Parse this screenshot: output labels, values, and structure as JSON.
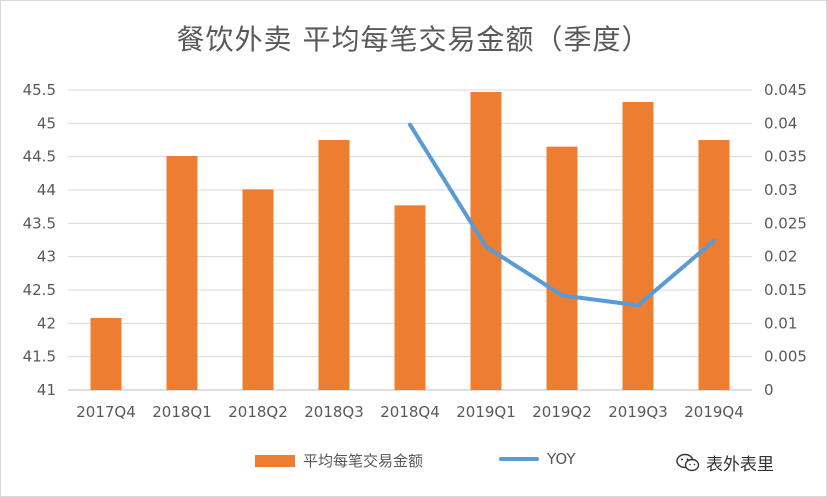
{
  "chart_data": {
    "type": "bar",
    "title": "餐饮外卖 平均每笔交易金额（季度）",
    "categories": [
      "2017Q4",
      "2018Q1",
      "2018Q2",
      "2018Q3",
      "2018Q4",
      "2019Q1",
      "2019Q2",
      "2019Q3",
      "2019Q4"
    ],
    "series": [
      {
        "name": "平均每笔交易金额",
        "type": "bar",
        "axis": "left",
        "color": "#ED7D31",
        "values": [
          42.08,
          44.51,
          44.01,
          44.75,
          43.77,
          45.47,
          44.65,
          45.32,
          44.75
        ]
      },
      {
        "name": "YOY",
        "type": "line",
        "axis": "right",
        "color": "#5B9BD5",
        "values": [
          null,
          null,
          null,
          null,
          0.0398,
          0.0215,
          0.0142,
          0.0127,
          0.0224
        ]
      }
    ],
    "ylim_left": [
      41,
      45.5
    ],
    "yticks_left": [
      "41",
      "41.5",
      "42",
      "42.5",
      "43",
      "43.5",
      "44",
      "44.5",
      "45",
      "45.5"
    ],
    "ylim_right": [
      0,
      0.045
    ],
    "yticks_right": [
      "0",
      "0.005",
      "0.01",
      "0.015",
      "0.02",
      "0.025",
      "0.03",
      "0.035",
      "0.04",
      "0.045"
    ],
    "grid": true,
    "legend_position": "bottom"
  },
  "watermark": {
    "text": "表外表里",
    "icon": "wechat-icon"
  }
}
